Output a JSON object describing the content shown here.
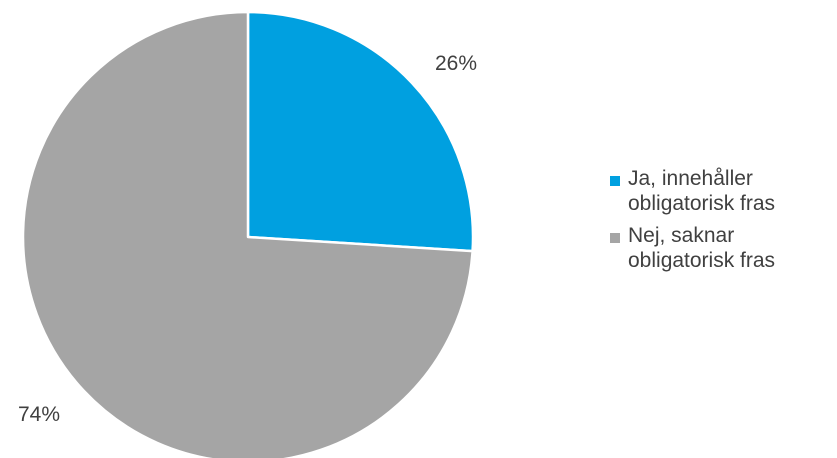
{
  "chart_data": {
    "type": "pie",
    "title": "",
    "slices": [
      {
        "label": "Ja, innehåller obligatorisk fras",
        "value": 26,
        "display": "26%",
        "color": "#00A0E0"
      },
      {
        "label": "Nej, saknar obligatorisk fras",
        "value": 74,
        "display": "74%",
        "color": "#A5A5A5"
      }
    ],
    "legend_position": "right",
    "start_angle": "12 o'clock, clockwise"
  }
}
